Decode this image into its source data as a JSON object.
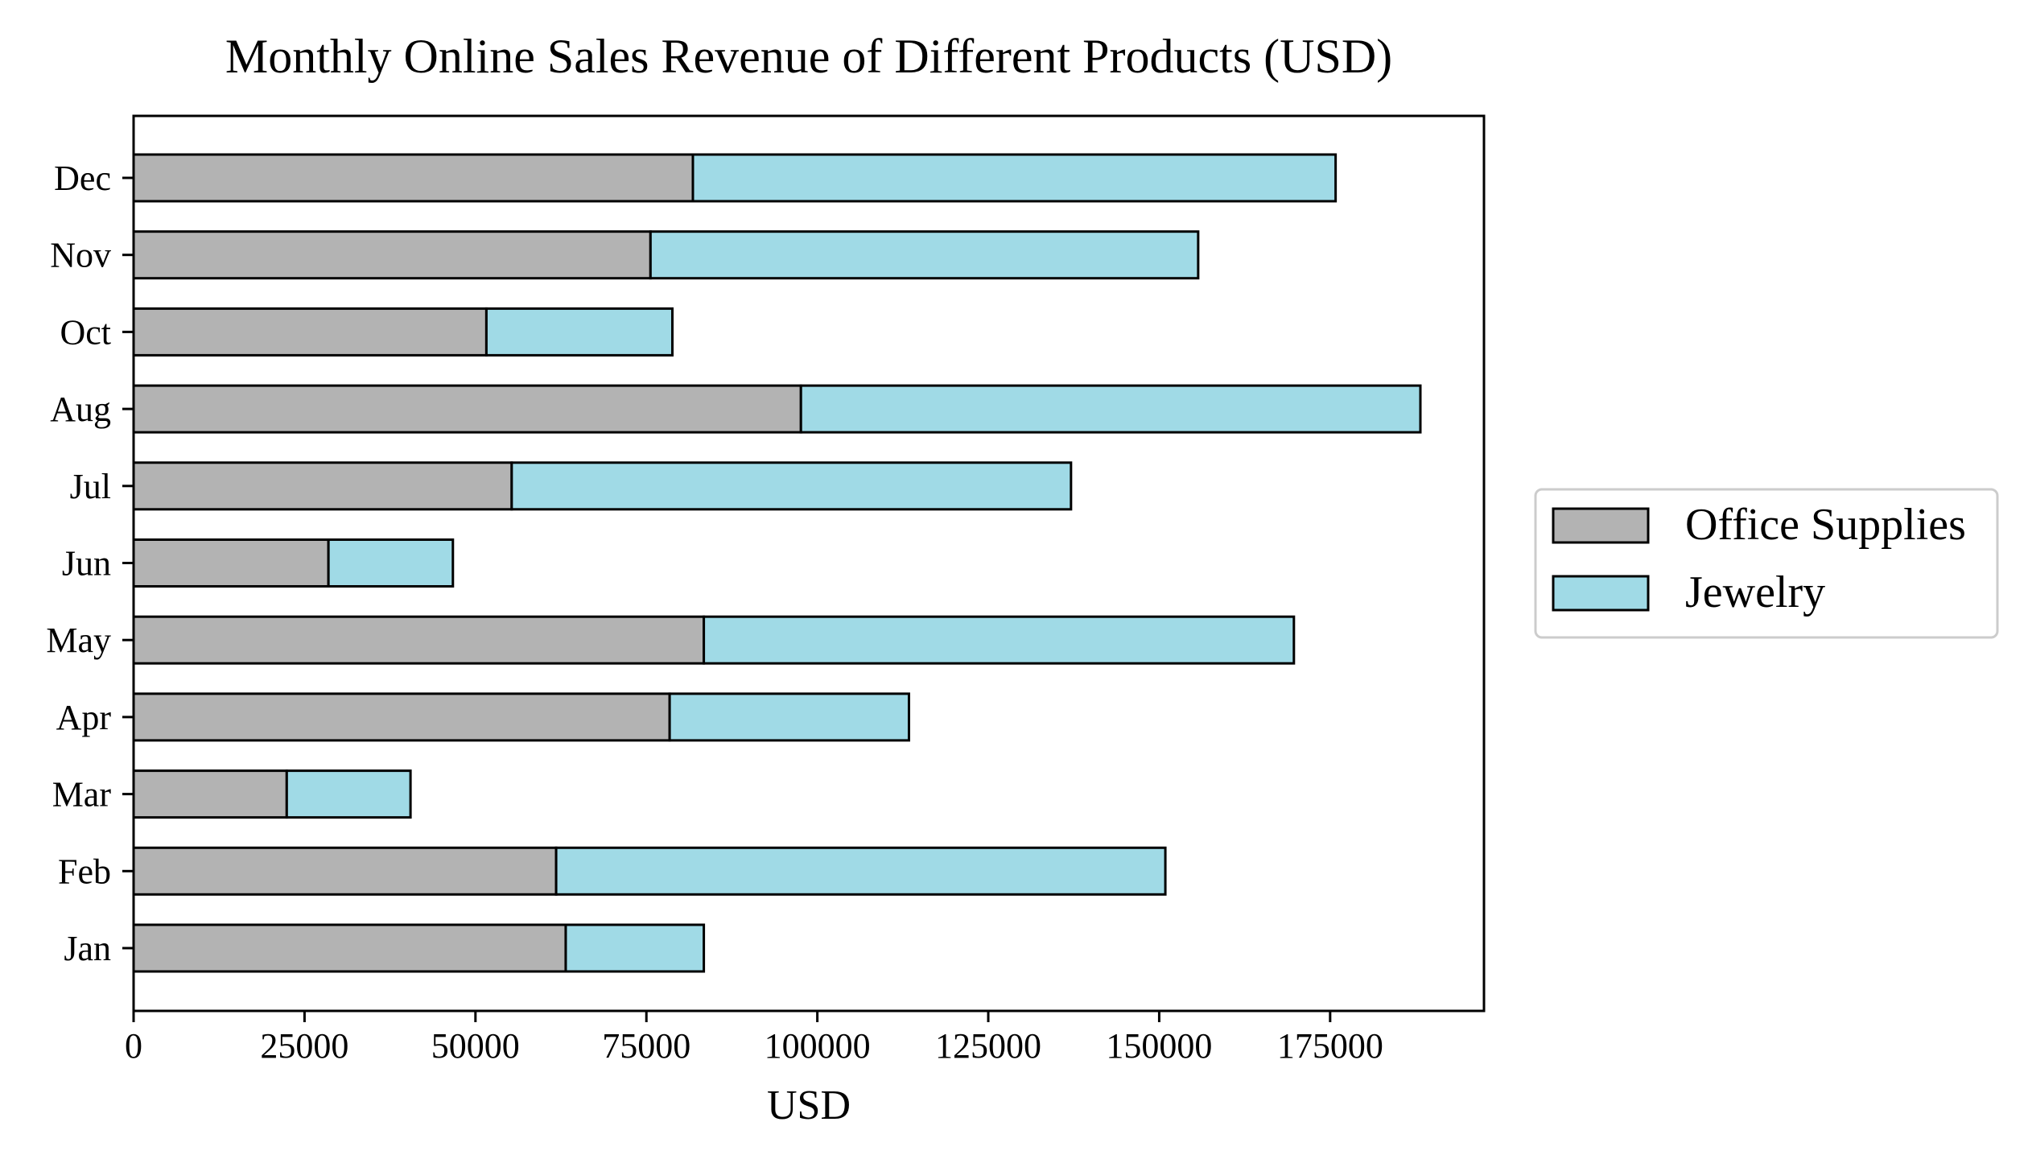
{
  "chart_data": {
    "type": "bar",
    "orientation": "horizontal",
    "stacked": true,
    "title": "Monthly Online Sales Revenue of Different Products (USD)",
    "xlabel": "USD",
    "ylabel": "",
    "categories": [
      "Jan",
      "Feb",
      "Mar",
      "Apr",
      "May",
      "Jun",
      "Jul",
      "Aug",
      "Oct",
      "Nov",
      "Dec"
    ],
    "series": [
      {
        "name": "Office Supplies",
        "color": "#b3b3b3",
        "values": [
          63200,
          61800,
          22400,
          78400,
          83400,
          28500,
          55300,
          97600,
          51600,
          75600,
          81800
        ]
      },
      {
        "name": "Jewelry",
        "color": "#a0dae6",
        "values": [
          20200,
          89100,
          18100,
          35000,
          86300,
          18200,
          81800,
          90600,
          27200,
          80100,
          94000
        ]
      }
    ],
    "xlim": [
      0,
      197500
    ],
    "xticks": [
      0,
      25000,
      50000,
      75000,
      100000,
      125000,
      150000,
      175000
    ],
    "xtick_labels": [
      "0",
      "25000",
      "50000",
      "75000",
      "100000",
      "125000",
      "150000",
      "175000"
    ],
    "grid": false,
    "legend_position": "right",
    "bar_edge_color": "#000000"
  }
}
